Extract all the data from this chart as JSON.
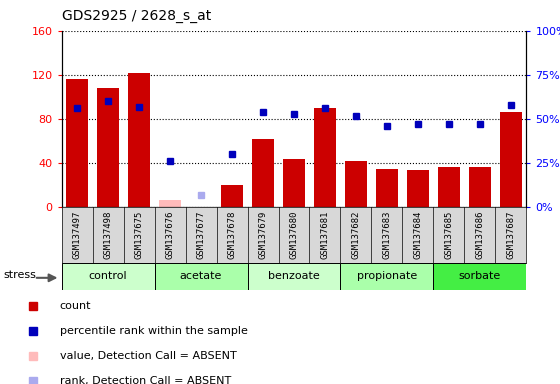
{
  "title": "GDS2925 / 2628_s_at",
  "samples": [
    "GSM137497",
    "GSM137498",
    "GSM137675",
    "GSM137676",
    "GSM137677",
    "GSM137678",
    "GSM137679",
    "GSM137680",
    "GSM137681",
    "GSM137682",
    "GSM137683",
    "GSM137684",
    "GSM137685",
    "GSM137686",
    "GSM137687"
  ],
  "bar_values": [
    116,
    108,
    122,
    7,
    0,
    20,
    62,
    44,
    90,
    42,
    35,
    34,
    37,
    37,
    86
  ],
  "bar_absent": [
    false,
    false,
    false,
    true,
    true,
    false,
    false,
    false,
    false,
    false,
    false,
    false,
    false,
    false,
    false
  ],
  "percentile_values": [
    56,
    60,
    57,
    26,
    7,
    30,
    54,
    53,
    56,
    52,
    46,
    47,
    47,
    47,
    58
  ],
  "percentile_absent": [
    false,
    false,
    false,
    false,
    true,
    false,
    false,
    false,
    false,
    false,
    false,
    false,
    false,
    false,
    false
  ],
  "groups": [
    {
      "label": "control",
      "start": 0,
      "end": 3,
      "color": "#ccffcc"
    },
    {
      "label": "acetate",
      "start": 3,
      "end": 6,
      "color": "#aaffaa"
    },
    {
      "label": "benzoate",
      "start": 6,
      "end": 9,
      "color": "#ccffcc"
    },
    {
      "label": "propionate",
      "start": 9,
      "end": 12,
      "color": "#aaffaa"
    },
    {
      "label": "sorbate",
      "start": 12,
      "end": 15,
      "color": "#44ee44"
    }
  ],
  "bar_color_present": "#cc0000",
  "bar_color_absent": "#ffbbbb",
  "dot_color_present": "#0000bb",
  "dot_color_absent": "#aaaaee",
  "ylim_left": [
    0,
    160
  ],
  "ylim_right": [
    0,
    100
  ],
  "yticks_left": [
    0,
    40,
    80,
    120,
    160
  ],
  "ytick_labels_left": [
    "0",
    "40",
    "80",
    "120",
    "160"
  ],
  "ytick_labels_right": [
    "0%",
    "25%",
    "50%",
    "75%",
    "100%"
  ],
  "stress_label": "stress",
  "bg_color": "#d8d8d8",
  "plot_bg": "#ffffff"
}
